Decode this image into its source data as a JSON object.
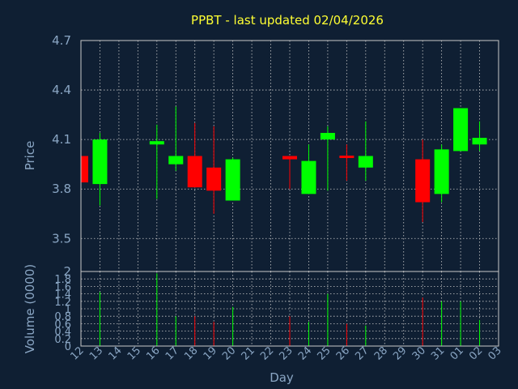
{
  "chart_data": {
    "type": "candlestick",
    "title": "PPBT - last updated 02/04/2026",
    "xlabel": "Day",
    "ylabel_price": "Price",
    "ylabel_volume": "Volume (0000)",
    "x_ticks": [
      "12",
      "13",
      "14",
      "15",
      "16",
      "17",
      "18",
      "19",
      "20",
      "21",
      "22",
      "23",
      "24",
      "25",
      "26",
      "27",
      "28",
      "29",
      "30",
      "31",
      "01",
      "02",
      "03"
    ],
    "price_axis": {
      "ylim": [
        3.3,
        4.7
      ],
      "ticks": [
        "3.5",
        "3.8",
        "4.1",
        "4.4",
        "4.7"
      ]
    },
    "volume_axis": {
      "ylim": [
        0,
        2
      ],
      "ticks": [
        "0",
        "0.2",
        "0.4",
        "0.6",
        "0.8",
        "1",
        "1.2",
        "1.4",
        "1.6",
        "1.8",
        "2"
      ]
    },
    "grid": true,
    "colors": {
      "up": "#00ff00",
      "down": "#ff0000",
      "title": "#ffff33",
      "axis_text": "#8aa6c4",
      "background": "#0f1f33"
    },
    "candles": [
      {
        "day": "12",
        "open": 4.0,
        "high": 4.0,
        "low": 3.84,
        "close": 3.84,
        "volume": 0
      },
      {
        "day": "13",
        "open": 3.83,
        "high": 4.14,
        "low": 3.7,
        "close": 4.1,
        "volume": 1.45
      },
      {
        "day": "16",
        "open": 4.07,
        "high": 4.19,
        "low": 3.74,
        "close": 4.09,
        "volume": 1.95
      },
      {
        "day": "17",
        "open": 3.95,
        "high": 4.3,
        "low": 3.91,
        "close": 4.0,
        "volume": 0.8
      },
      {
        "day": "18",
        "open": 4.0,
        "high": 4.2,
        "low": 3.81,
        "close": 3.81,
        "volume": 0.8
      },
      {
        "day": "19",
        "open": 3.93,
        "high": 4.18,
        "low": 3.65,
        "close": 3.79,
        "volume": 0.65
      },
      {
        "day": "20",
        "open": 3.73,
        "high": 3.99,
        "low": 3.73,
        "close": 3.98,
        "volume": 1.05
      },
      {
        "day": "23",
        "open": 4.0,
        "high": 4.0,
        "low": 3.8,
        "close": 3.98,
        "volume": 0.8
      },
      {
        "day": "24",
        "open": 3.77,
        "high": 4.07,
        "low": 3.77,
        "close": 3.97,
        "volume": 0.65
      },
      {
        "day": "25",
        "open": 4.1,
        "high": 4.18,
        "low": 3.79,
        "close": 4.14,
        "volume": 1.4
      },
      {
        "day": "26",
        "open": 4.0,
        "high": 4.07,
        "low": 3.85,
        "close": 3.99,
        "volume": 0.6
      },
      {
        "day": "27",
        "open": 3.93,
        "high": 4.21,
        "low": 3.85,
        "close": 4.0,
        "volume": 0.55
      },
      {
        "day": "30",
        "open": 3.98,
        "high": 4.1,
        "low": 3.6,
        "close": 3.72,
        "volume": 1.3
      },
      {
        "day": "31",
        "open": 3.77,
        "high": 4.07,
        "low": 3.72,
        "close": 4.04,
        "volume": 1.2
      },
      {
        "day": "01",
        "open": 4.03,
        "high": 4.29,
        "low": 4.03,
        "close": 4.29,
        "volume": 1.2
      },
      {
        "day": "02",
        "open": 4.07,
        "high": 4.21,
        "low": 4.03,
        "close": 4.11,
        "volume": 0.7
      }
    ]
  }
}
